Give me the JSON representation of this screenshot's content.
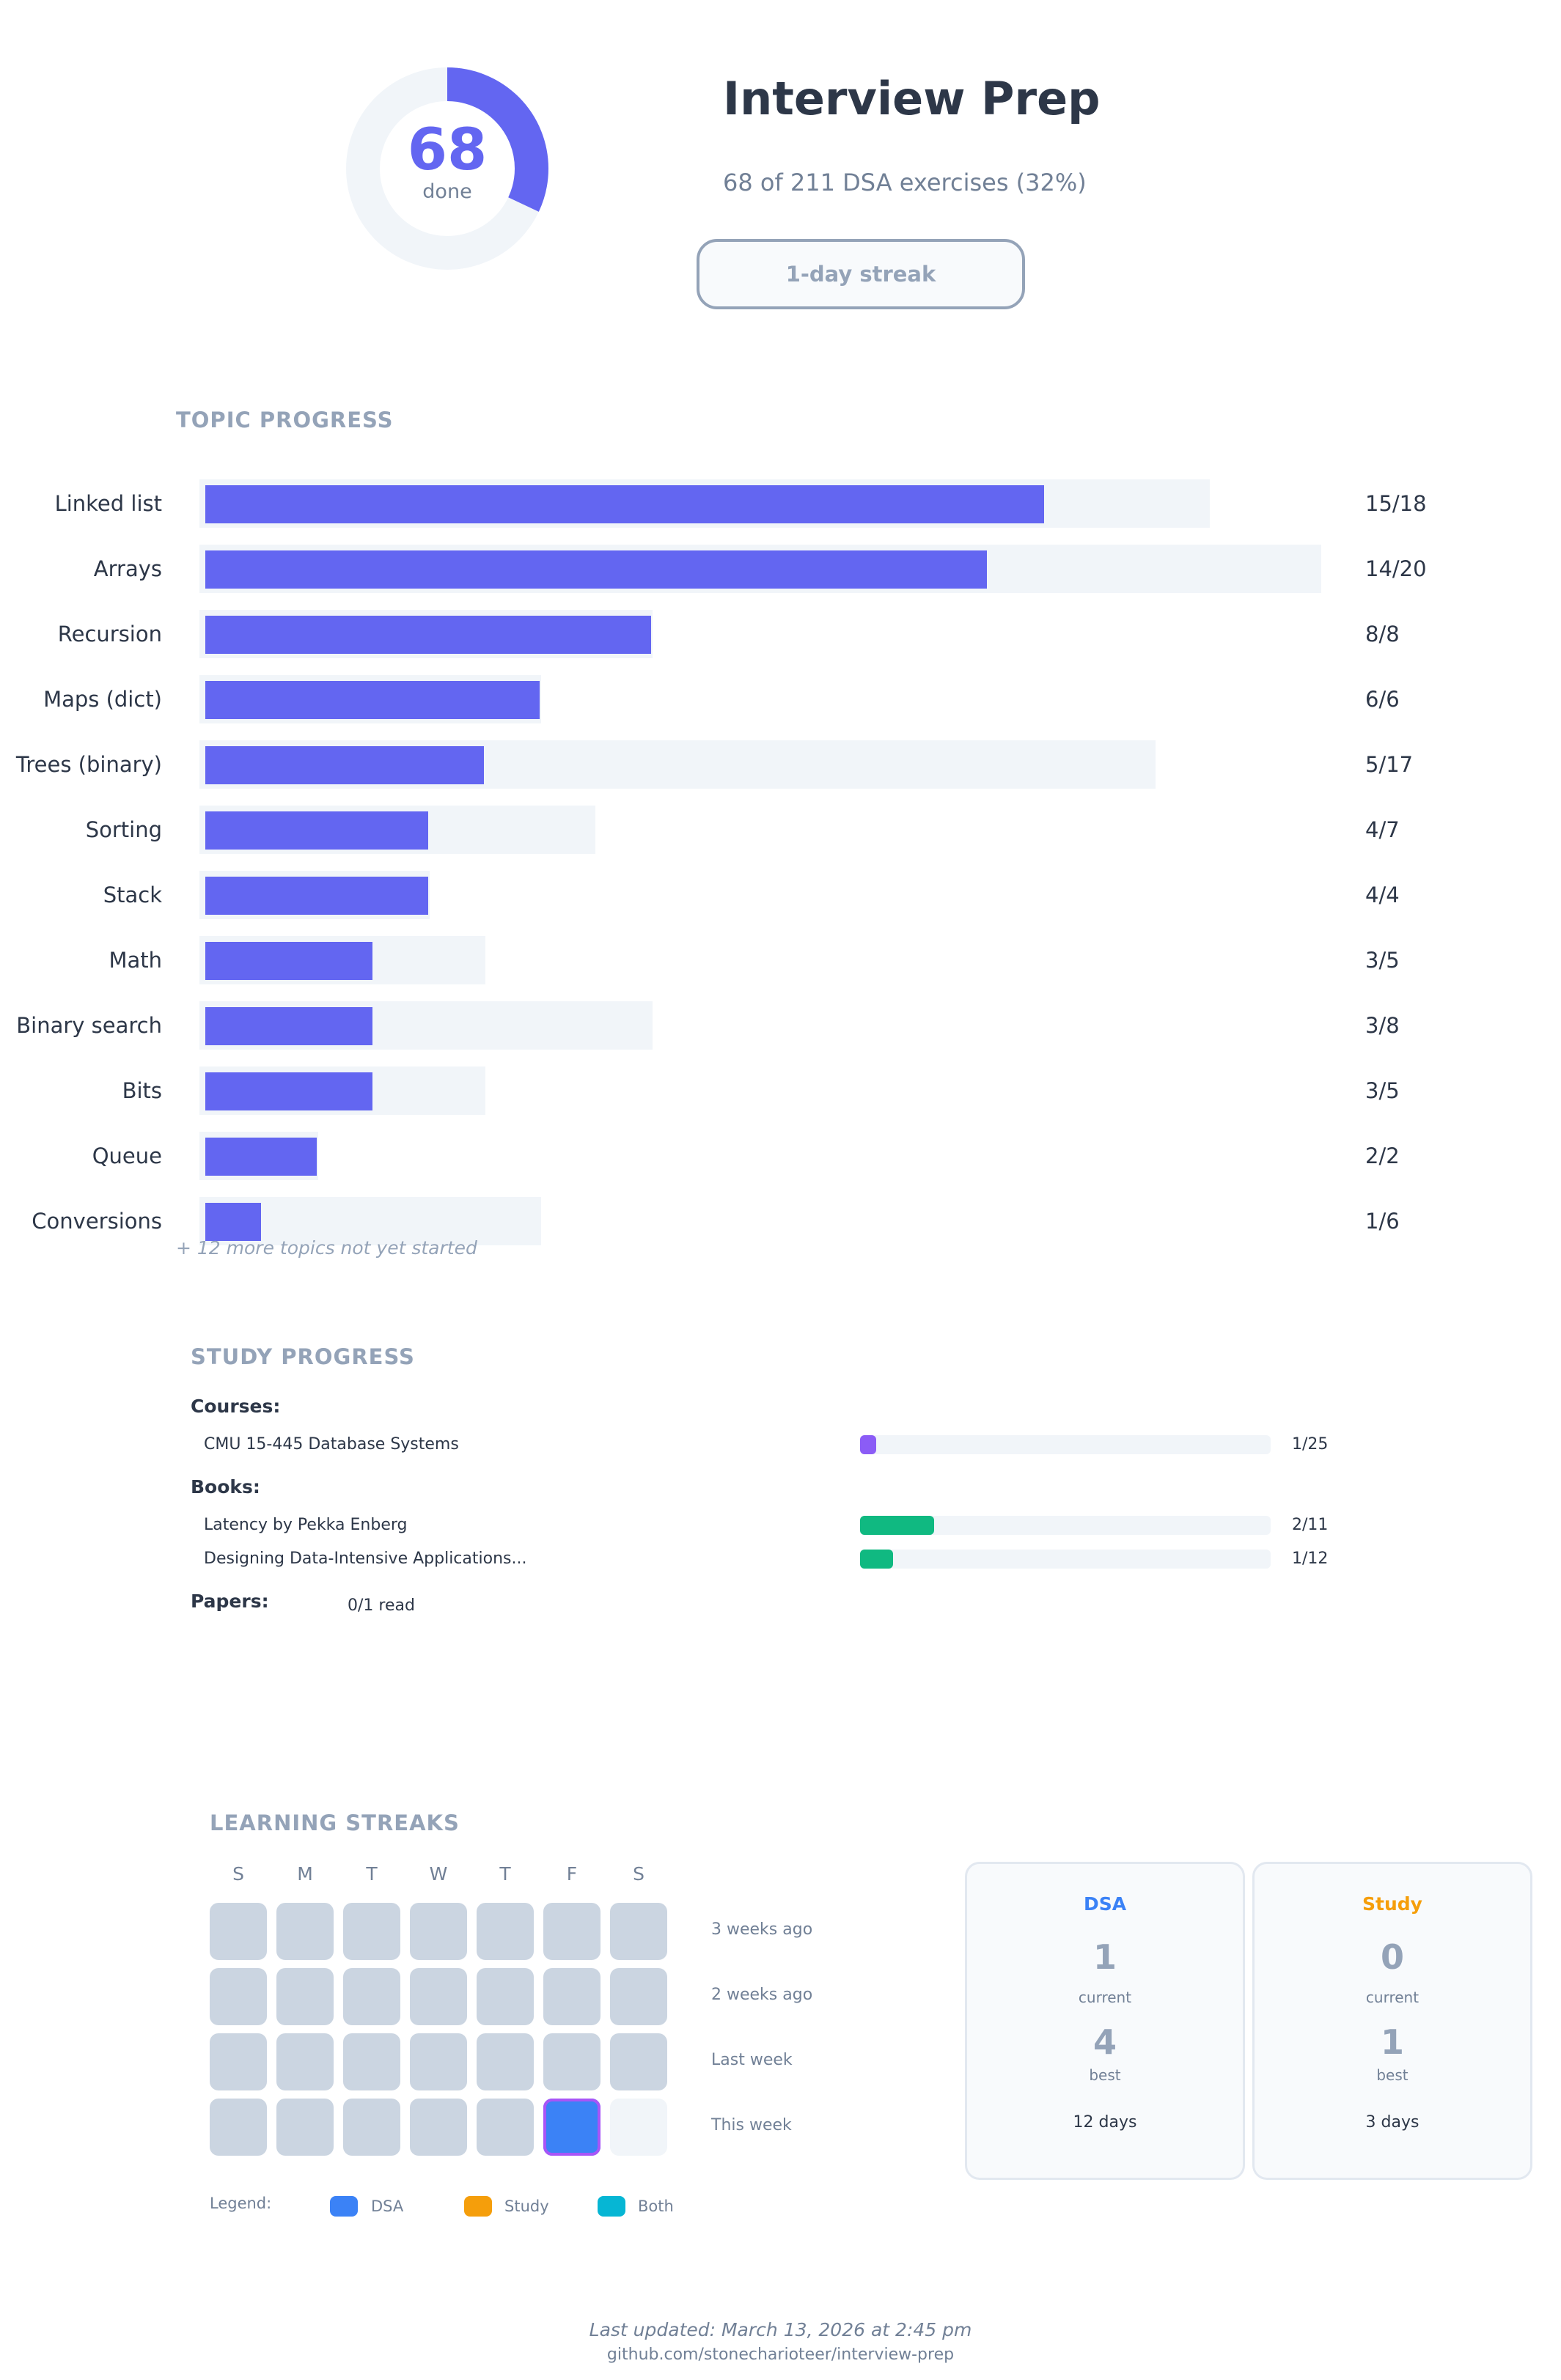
{
  "header": {
    "done_count": "68",
    "done_label": "done",
    "done_fraction": 0.32,
    "title": "Interview Prep",
    "subtitle": "68 of 211 DSA exercises (32%)",
    "streak_label": "1-day streak"
  },
  "topic_progress": {
    "title": "TOPIC PROGRESS",
    "topics": [
      {
        "label": "Linked list",
        "count": "15/18"
      },
      {
        "label": "Arrays",
        "count": "14/20"
      },
      {
        "label": "Recursion",
        "count": "8/8"
      },
      {
        "label": "Maps (dict)",
        "count": "6/6"
      },
      {
        "label": "Trees (binary)",
        "count": "5/17"
      },
      {
        "label": "Sorting",
        "count": "4/7"
      },
      {
        "label": "Stack",
        "count": "4/4"
      },
      {
        "label": "Math",
        "count": "3/5"
      },
      {
        "label": "Binary search",
        "count": "3/8"
      },
      {
        "label": "Bits",
        "count": "3/5"
      },
      {
        "label": "Queue",
        "count": "2/2"
      },
      {
        "label": "Conversions",
        "count": "1/6"
      }
    ],
    "more_note": "+ 12 more topics not yet started"
  },
  "study_progress": {
    "title": "STUDY PROGRESS",
    "courses_label": "Courses:",
    "courses": [
      {
        "name": "CMU 15-445 Database Systems",
        "count": "1/25",
        "fraction": 0.04,
        "color": "#8b5cf6"
      }
    ],
    "books_label": "Books:",
    "books": [
      {
        "name": "Latency by Pekka Enberg",
        "count": "2/11",
        "fraction": 0.18,
        "color": "#10b981"
      },
      {
        "name": "Designing Data-Intensive Applications...",
        "count": "1/12",
        "fraction": 0.08,
        "color": "#10b981"
      }
    ],
    "papers_label": "Papers:",
    "papers_value": "0/1 read"
  },
  "streaks": {
    "title": "LEARNING STREAKS",
    "days": [
      "S",
      "M",
      "T",
      "W",
      "T",
      "F",
      "S"
    ],
    "weeks": [
      {
        "label": "3 weeks ago",
        "cells": [
          "none",
          "none",
          "none",
          "none",
          "none",
          "none",
          "none"
        ]
      },
      {
        "label": "2 weeks ago",
        "cells": [
          "none",
          "none",
          "none",
          "none",
          "none",
          "none",
          "none"
        ]
      },
      {
        "label": "Last week",
        "cells": [
          "none",
          "none",
          "none",
          "none",
          "none",
          "none",
          "none"
        ]
      },
      {
        "label": "This week",
        "cells": [
          "none",
          "none",
          "none",
          "none",
          "none",
          "dsa",
          "future"
        ]
      }
    ],
    "legend_label": "Legend:",
    "legend": [
      {
        "label": "DSA",
        "color": "#3b82f6"
      },
      {
        "label": "Study",
        "color": "#f59e0b"
      },
      {
        "label": "Both",
        "color": "#06b6d4"
      }
    ],
    "cards": [
      {
        "title": "DSA",
        "color": "#3b82f6",
        "current": "1",
        "current_label": "current",
        "best": "4",
        "best_label": "best",
        "days": "12 days"
      },
      {
        "title": "Study",
        "color": "#f59e0b",
        "current": "0",
        "current_label": "current",
        "best": "1",
        "best_label": "best",
        "days": "3 days"
      }
    ]
  },
  "footer": {
    "updated": "Last updated: March 13, 2026 at 2:45 pm",
    "repo": "github.com/stonecharioteer/interview-prep"
  }
}
